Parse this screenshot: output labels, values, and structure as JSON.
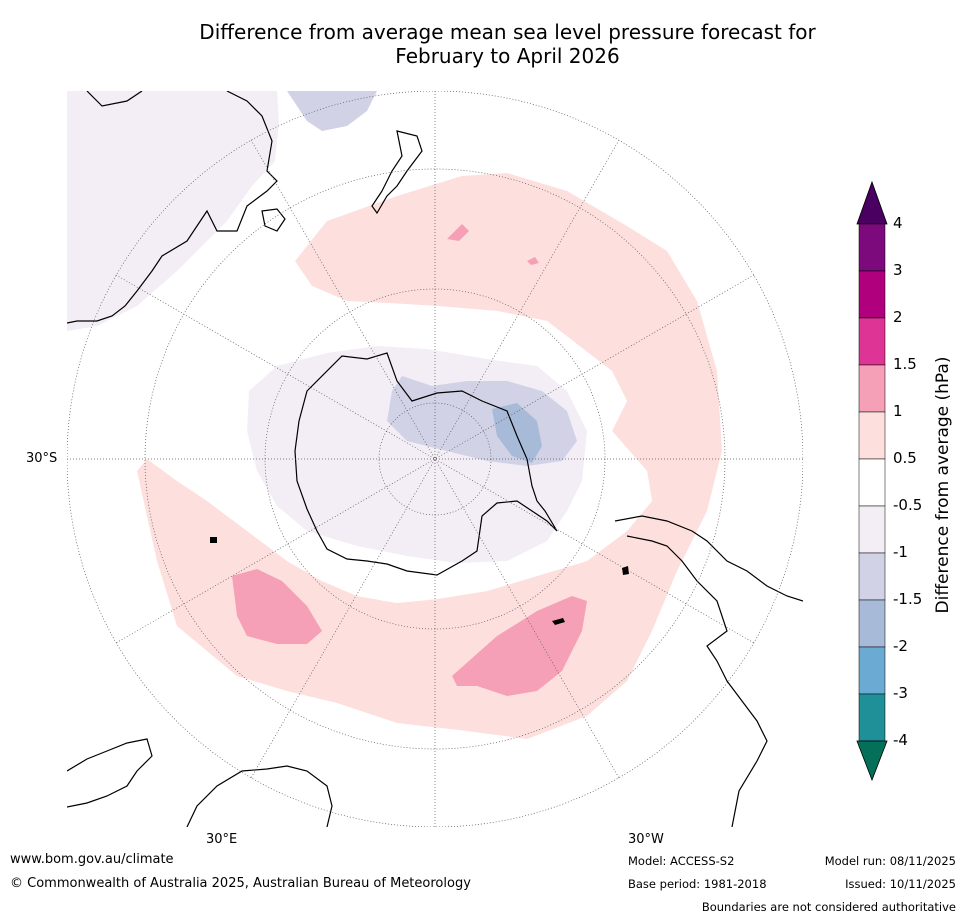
{
  "title": {
    "line1": "Difference from average mean sea level pressure forecast for",
    "line2": "February to April 2026"
  },
  "map": {
    "projection": "south-polar-stereographic",
    "grid_labels": {
      "lat_30s": "30°S",
      "lon_30e": "30°E",
      "lon_30w": "30°W"
    }
  },
  "colorbar": {
    "title": "Difference from average (hPa)",
    "ticks": [
      "4",
      "3",
      "2",
      "1.5",
      "1",
      "0.5",
      "-0.5",
      "-1",
      "-1.5",
      "-2",
      "-3",
      "-4"
    ],
    "colors": {
      "above_4": "#4a0060",
      "3_to_4": "#7c0a7c",
      "2_to_3": "#b0007d",
      "1.5_to_2": "#dd3496",
      "1_to_1.5": "#f6a0b8",
      "0.5_to_1": "#fde0de",
      "-0.5_to_0.5": "#ffffff",
      "-1_to_-0.5": "#f3eef5",
      "-1.5_to_-1": "#d1d2e6",
      "-2_to_-1.5": "#a7bbd9",
      "-3_to_-2": "#6aaad3",
      "-4_to_-3": "#1f8f98",
      "below_-4": "#05705a"
    }
  },
  "footer": {
    "url": "www.bom.gov.au/climate",
    "copyright": "© Commonwealth of Australia 2025, Australian Bureau of Meteorology",
    "model": "Model: ACCESS-S2",
    "model_run": "Model run: 08/11/2025",
    "base_period": "Base period: 1981-2018",
    "issued": "Issued: 10/11/2025",
    "disclaimer": "Boundaries are not considered authoritative"
  }
}
